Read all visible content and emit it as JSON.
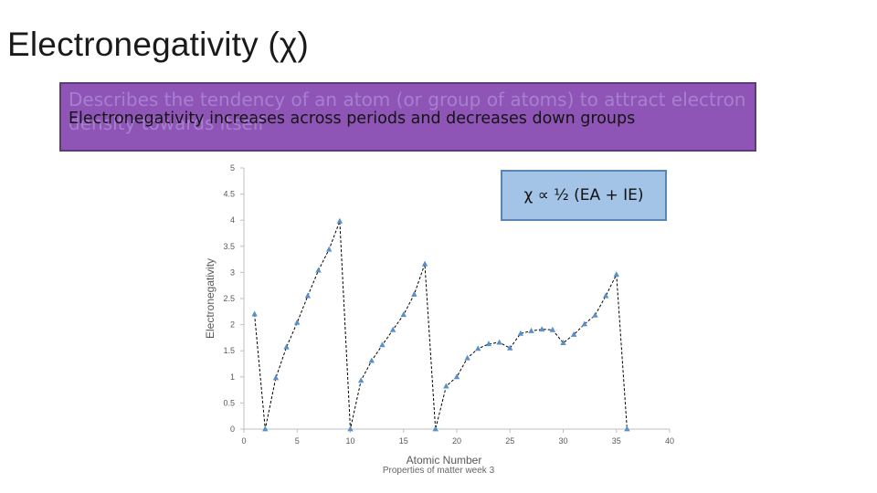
{
  "slide": {
    "title": "Electronegativity (χ)",
    "ghost_text": "Describes the tendency of an atom (or group of atoms) to attract electron density towards itself",
    "main_text": "Electronegativity increases across periods and decreases down groups",
    "formula": "χ ∝ ½ (EA + IE)",
    "footer": "Properties of matter week 3"
  },
  "chart_data": {
    "type": "line",
    "xlabel": "Atomic Number",
    "ylabel": "Electronegativity",
    "xlim": [
      0,
      40
    ],
    "ylim": [
      0,
      5
    ],
    "xticks": [
      0,
      5,
      10,
      15,
      20,
      25,
      30,
      35,
      40
    ],
    "yticks": [
      "0",
      "0.5",
      "1",
      "1.5",
      "2",
      "2.5",
      "3",
      "3.5",
      "4",
      "4.5",
      "5"
    ],
    "grid": false,
    "line_style": "dashed",
    "colors": {
      "marker": "#5b8fc7",
      "line": "#000000",
      "axis": "#bfbfbf",
      "tick_text": "#595959"
    },
    "x": [
      1,
      2,
      3,
      4,
      5,
      6,
      7,
      8,
      9,
      10,
      11,
      12,
      13,
      14,
      15,
      16,
      17,
      18,
      19,
      20,
      21,
      22,
      23,
      24,
      25,
      26,
      27,
      28,
      29,
      30,
      31,
      32,
      33,
      34,
      35,
      36
    ],
    "y": [
      2.2,
      0,
      0.98,
      1.57,
      2.04,
      2.55,
      3.04,
      3.44,
      3.98,
      0,
      0.93,
      1.31,
      1.61,
      1.9,
      2.19,
      2.58,
      3.16,
      0,
      0.82,
      1.0,
      1.36,
      1.54,
      1.63,
      1.66,
      1.55,
      1.83,
      1.88,
      1.91,
      1.9,
      1.65,
      1.81,
      2.01,
      2.18,
      2.55,
      2.96,
      0
    ]
  }
}
